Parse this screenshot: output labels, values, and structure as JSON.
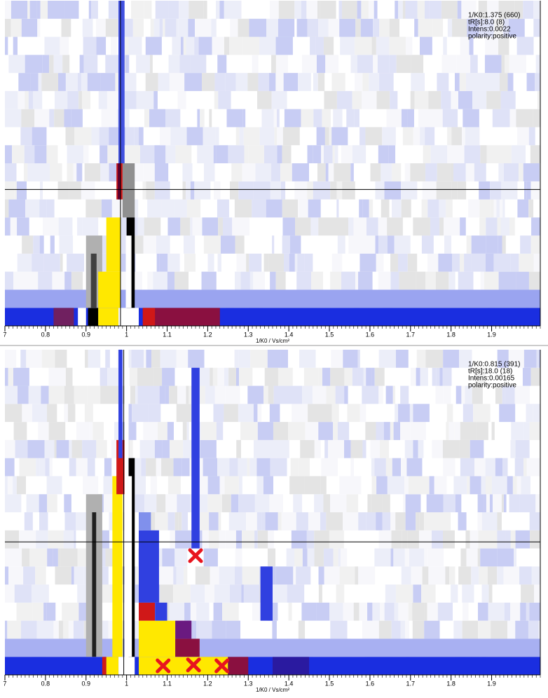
{
  "chart_data": [
    {
      "type": "heatmap",
      "info": [
        "1/K0:1.375 (660)",
        "tR[s]:8.0 (8)",
        "Intens:0.0022",
        "polarity:positive"
      ],
      "x_label": "1/K0 / Vs/cm²",
      "xlim": [
        0.7,
        2.02
      ],
      "xticks": [
        {
          "value": 0.7,
          "label": "7"
        },
        0.8,
        0.9,
        1,
        1.1,
        1.2,
        1.3,
        1.4,
        1.5,
        1.6,
        1.7,
        1.8,
        1.9
      ],
      "minor_tick_step": 0.01,
      "rows": 18,
      "crosshair": {
        "x": 0.985,
        "row": 7.55
      },
      "features": [
        {
          "x0": 0.7,
          "x1": 2.02,
          "row0": 0,
          "row1": 0,
          "color": "#1a2ee0"
        },
        {
          "x0": 0.82,
          "x1": 0.87,
          "row0": 0,
          "row1": 0,
          "color": "#702060"
        },
        {
          "x0": 1.04,
          "x1": 1.23,
          "row0": 0,
          "row1": 0,
          "color": "#8a1040"
        },
        {
          "x0": 1.04,
          "x1": 1.07,
          "row0": 0,
          "row1": 0,
          "color": "#d01818"
        },
        {
          "x0": 0.88,
          "x1": 0.9,
          "row0": 0,
          "row1": 0,
          "color": "#ffffff"
        },
        {
          "x0": 0.905,
          "x1": 0.93,
          "row0": 0,
          "row1": 0,
          "color": "#000000"
        },
        {
          "x0": 0.93,
          "x1": 0.98,
          "row0": 0,
          "row1": 0,
          "color": "#ffe800"
        },
        {
          "x0": 0.98,
          "x1": 1.03,
          "row0": 0,
          "row1": 0,
          "color": "#ffffff"
        },
        {
          "x0": 0.7,
          "x1": 2.02,
          "row0": 1,
          "row1": 1,
          "color": "#9aa4f0"
        },
        {
          "x0": 0.9,
          "x1": 0.94,
          "row0": 1,
          "row1": 4,
          "color": "#b0b0b0"
        },
        {
          "x0": 0.912,
          "x1": 0.926,
          "row0": 1,
          "row1": 3,
          "color": "#404040"
        },
        {
          "x0": 0.93,
          "x1": 0.985,
          "row0": 1,
          "row1": 2,
          "color": "#ffe800"
        },
        {
          "x0": 0.95,
          "x1": 0.985,
          "row0": 3,
          "row1": 5,
          "color": "#ffe800"
        },
        {
          "x0": 0.99,
          "x1": 1.02,
          "row0": 6,
          "row1": 8,
          "color": "#909090"
        },
        {
          "x0": 1.0,
          "x1": 1.02,
          "row0": 1,
          "row1": 5,
          "color": "#000000"
        },
        {
          "x0": 0.998,
          "x1": 1.012,
          "row0": 1,
          "row1": 4,
          "color": "#ffffff"
        },
        {
          "x0": 0.975,
          "x1": 0.99,
          "row0": 7,
          "row1": 8,
          "color": "#d01818"
        },
        {
          "x0": 0.978,
          "x1": 0.986,
          "row0": 7,
          "row1": 8,
          "color": "#600030"
        },
        {
          "x0": 0.98,
          "x1": 0.995,
          "row0": 9,
          "row1": 17,
          "color": "#4050e0"
        }
      ],
      "markers": []
    },
    {
      "type": "heatmap",
      "info": [
        "1/K0:0.815 (391)",
        "tR[s]:18.0 (18)",
        "Intens:0.00165",
        "polarity:positive"
      ],
      "x_label": "1/K0 / Vs/cm²",
      "xlim": [
        0.7,
        2.02
      ],
      "xticks": [
        {
          "value": 0.7,
          "label": "7"
        },
        0.8,
        0.9,
        1,
        1.1,
        1.2,
        1.3,
        1.4,
        1.5,
        1.6,
        1.7,
        1.8,
        1.9
      ],
      "minor_tick_step": 0.01,
      "rows": 18,
      "crosshair": {
        "x": 0.993,
        "row": 7.36
      },
      "features": [
        {
          "x0": 0.7,
          "x1": 2.02,
          "row0": 0,
          "row1": 0,
          "color": "#1a2ee0"
        },
        {
          "x0": 1.03,
          "x1": 1.25,
          "row0": 0,
          "row1": 0,
          "color": "#ffe800"
        },
        {
          "x0": 1.25,
          "x1": 1.3,
          "row0": 0,
          "row1": 0,
          "color": "#8a1040"
        },
        {
          "x0": 1.36,
          "x1": 1.45,
          "row0": 0,
          "row1": 0,
          "color": "#2a1aa0"
        },
        {
          "x0": 0.94,
          "x1": 0.95,
          "row0": 0,
          "row1": 0,
          "color": "#d01818"
        },
        {
          "x0": 0.95,
          "x1": 0.98,
          "row0": 0,
          "row1": 0,
          "color": "#ffe800"
        },
        {
          "x0": 0.98,
          "x1": 1.02,
          "row0": 0,
          "row1": 0,
          "color": "#ffffff"
        },
        {
          "x0": 0.7,
          "x1": 2.02,
          "row0": 1,
          "row1": 1,
          "color": "#a8b0f2"
        },
        {
          "x0": 1.03,
          "x1": 1.12,
          "row0": 1,
          "row1": 2,
          "color": "#ffe800"
        },
        {
          "x0": 1.12,
          "x1": 1.18,
          "row0": 1,
          "row1": 1,
          "color": "#8a1040"
        },
        {
          "x0": 1.12,
          "x1": 1.16,
          "row0": 2,
          "row1": 2,
          "color": "#6a1a80"
        },
        {
          "x0": 1.03,
          "x1": 1.07,
          "row0": 3,
          "row1": 3,
          "color": "#d01818"
        },
        {
          "x0": 1.07,
          "x1": 1.1,
          "row0": 3,
          "row1": 3,
          "color": "#3040e0"
        },
        {
          "x0": 1.03,
          "x1": 1.08,
          "row0": 4,
          "row1": 7,
          "color": "#3040e0"
        },
        {
          "x0": 1.03,
          "x1": 1.06,
          "row0": 8,
          "row1": 8,
          "color": "#8090ec"
        },
        {
          "x0": 1.33,
          "x1": 1.36,
          "row0": 3,
          "row1": 5,
          "color": "#3040e0"
        },
        {
          "x0": 1.16,
          "x1": 1.18,
          "row0": 7,
          "row1": 16,
          "color": "#3040e0"
        },
        {
          "x0": 0.9,
          "x1": 0.94,
          "row0": 1,
          "row1": 9,
          "color": "#b0b0b0"
        },
        {
          "x0": 0.915,
          "x1": 0.925,
          "row0": 1,
          "row1": 8,
          "color": "#202020"
        },
        {
          "x0": 0.965,
          "x1": 0.99,
          "row0": 1,
          "row1": 10,
          "color": "#ffe800"
        },
        {
          "x0": 1.0,
          "x1": 1.02,
          "row0": 1,
          "row1": 11,
          "color": "#000000"
        },
        {
          "x0": 1.003,
          "x1": 1.013,
          "row0": 1,
          "row1": 10,
          "color": "#ffffff"
        },
        {
          "x0": 0.975,
          "x1": 0.995,
          "row0": 10,
          "row1": 12,
          "color": "#d01818"
        },
        {
          "x0": 0.995,
          "x1": 1.005,
          "row0": 0,
          "row1": 17,
          "color": "#ffffff"
        },
        {
          "x0": 0.98,
          "x1": 0.99,
          "row0": 12,
          "row1": 17,
          "color": "#3040e0"
        }
      ],
      "markers": [
        {
          "x": 1.17,
          "row": 6.6
        },
        {
          "x": 1.09,
          "row": 0.5
        },
        {
          "x": 1.165,
          "row": 0.55
        },
        {
          "x": 1.235,
          "row": 0.5
        }
      ]
    }
  ]
}
